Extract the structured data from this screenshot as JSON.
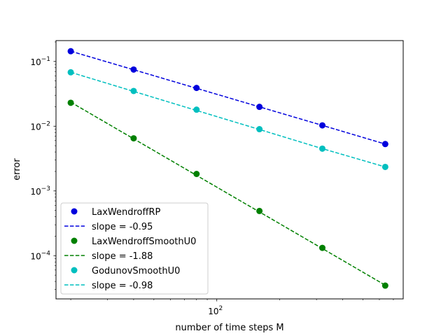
{
  "chart_data": {
    "type": "line",
    "xlabel": "number of time steps M",
    "ylabel": "error",
    "x_scale": "log",
    "y_scale": "log",
    "xlim": [
      17,
      780
    ],
    "ylim": [
      2.15e-05,
      0.21
    ],
    "grid": false,
    "legend_position": "lower-left",
    "x_ticks": [
      {
        "value": 100,
        "base": "10",
        "exp": "2"
      }
    ],
    "y_ticks": [
      {
        "value": 0.1,
        "base": "10",
        "exp": "−1"
      },
      {
        "value": 0.01,
        "base": "10",
        "exp": "−2"
      },
      {
        "value": 0.001,
        "base": "10",
        "exp": "−3"
      },
      {
        "value": 0.0001,
        "base": "10",
        "exp": "−4"
      }
    ],
    "x": [
      20,
      40,
      80,
      160,
      320,
      640
    ],
    "series": [
      {
        "name": "LaxWendroffRP",
        "fit_name": "slope = -0.95",
        "color": "#0000dd",
        "points": [
          0.144,
          0.075,
          0.039,
          0.0199,
          0.0103,
          0.0053
        ],
        "fit": [
          0.144,
          0.0745,
          0.0385,
          0.0199,
          0.0103,
          0.0053
        ]
      },
      {
        "name": "LaxWendroffSmoothU0",
        "fit_name": "slope = -1.88",
        "color": "#008000",
        "points": [
          0.023,
          0.0065,
          0.00183,
          0.00049,
          0.000132,
          3.45e-05
        ],
        "fit": [
          0.0235,
          0.00639,
          0.00174,
          0.000474,
          0.000129,
          3.5e-05
        ]
      },
      {
        "name": "GodunovSmoothU0",
        "fit_name": "slope = -0.98",
        "color": "#00bfbf",
        "points": [
          0.068,
          0.035,
          0.018,
          0.009,
          0.0045,
          0.00235
        ],
        "fit": [
          0.068,
          0.0345,
          0.0175,
          0.0089,
          0.0045,
          0.00235
        ]
      }
    ]
  }
}
